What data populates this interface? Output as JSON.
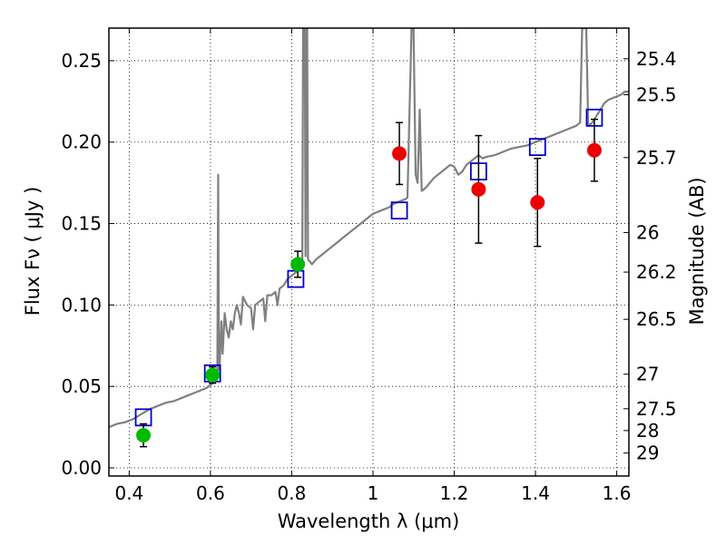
{
  "chart_data": {
    "type": "scatter",
    "xlabel": "Wavelength  λ (μm)",
    "ylabel": "Flux  Fν  ( μJy )",
    "ylabel_right": "Magnitude (AB)",
    "xlim": [
      0.35,
      1.63
    ],
    "ylim": [
      -0.005,
      0.27
    ],
    "grid": true,
    "x_ticks": [
      0.4,
      0.6,
      0.8,
      1.0,
      1.2,
      1.4,
      1.6
    ],
    "x_tick_labels": [
      "0.4",
      "0.6",
      "0.8",
      "1",
      "1.2",
      "1.4",
      "1.6"
    ],
    "y_ticks": [
      0.0,
      0.05,
      0.1,
      0.15,
      0.2,
      0.25
    ],
    "y_tick_labels": [
      "0.00",
      "0.05",
      "0.10",
      "0.15",
      "0.20",
      "0.25"
    ],
    "right_ticks": [
      {
        "label": "25.4",
        "flux": 0.2512
      },
      {
        "label": "25.5",
        "flux": 0.2291
      },
      {
        "label": "25.7",
        "flux": 0.1905
      },
      {
        "label": "26",
        "flux": 0.1445
      },
      {
        "label": "26.2",
        "flux": 0.1202
      },
      {
        "label": "26.5",
        "flux": 0.0912
      },
      {
        "label": "27",
        "flux": 0.0575
      },
      {
        "label": "27.5",
        "flux": 0.0363
      },
      {
        "label": "28",
        "flux": 0.0229
      },
      {
        "label": "29",
        "flux": 0.0091
      }
    ],
    "series": [
      {
        "kind": "line",
        "color": "#808080",
        "points": [
          [
            0.35,
            0.025
          ],
          [
            0.37,
            0.027
          ],
          [
            0.39,
            0.028
          ],
          [
            0.41,
            0.03
          ],
          [
            0.43,
            0.033
          ],
          [
            0.45,
            0.036
          ],
          [
            0.47,
            0.038
          ],
          [
            0.49,
            0.04
          ],
          [
            0.51,
            0.041
          ],
          [
            0.53,
            0.043
          ],
          [
            0.55,
            0.045
          ],
          [
            0.57,
            0.047
          ],
          [
            0.59,
            0.049
          ],
          [
            0.605,
            0.052
          ],
          [
            0.615,
            0.055
          ],
          [
            0.617,
            0.06
          ],
          [
            0.619,
            0.18
          ],
          [
            0.621,
            0.06
          ],
          [
            0.623,
            0.065
          ],
          [
            0.627,
            0.09
          ],
          [
            0.63,
            0.07
          ],
          [
            0.635,
            0.095
          ],
          [
            0.64,
            0.085
          ],
          [
            0.645,
            0.08
          ],
          [
            0.65,
            0.09
          ],
          [
            0.655,
            0.085
          ],
          [
            0.66,
            0.095
          ],
          [
            0.665,
            0.1
          ],
          [
            0.67,
            0.095
          ],
          [
            0.675,
            0.088
          ],
          [
            0.68,
            0.105
          ],
          [
            0.69,
            0.1
          ],
          [
            0.7,
            0.098
          ],
          [
            0.705,
            0.085
          ],
          [
            0.71,
            0.1
          ],
          [
            0.72,
            0.102
          ],
          [
            0.73,
            0.104
          ],
          [
            0.735,
            0.09
          ],
          [
            0.74,
            0.106
          ],
          [
            0.75,
            0.106
          ],
          [
            0.76,
            0.108
          ],
          [
            0.765,
            0.1
          ],
          [
            0.77,
            0.11
          ],
          [
            0.78,
            0.112
          ],
          [
            0.79,
            0.116
          ],
          [
            0.8,
            0.118
          ],
          [
            0.81,
            0.12
          ],
          [
            0.82,
            0.122
          ],
          [
            0.826,
            0.124
          ],
          [
            0.828,
            0.27
          ],
          [
            0.832,
            0.27
          ],
          [
            0.834,
            0.13
          ],
          [
            0.836,
            0.27
          ],
          [
            0.838,
            0.27
          ],
          [
            0.84,
            0.128
          ],
          [
            0.85,
            0.125
          ],
          [
            0.86,
            0.128
          ],
          [
            0.87,
            0.13
          ],
          [
            0.88,
            0.132
          ],
          [
            0.89,
            0.134
          ],
          [
            0.9,
            0.136
          ],
          [
            0.91,
            0.138
          ],
          [
            0.92,
            0.14
          ],
          [
            0.93,
            0.142
          ],
          [
            0.94,
            0.144
          ],
          [
            0.95,
            0.146
          ],
          [
            0.96,
            0.148
          ],
          [
            0.97,
            0.15
          ],
          [
            0.98,
            0.152
          ],
          [
            0.99,
            0.154
          ],
          [
            1.0,
            0.156
          ],
          [
            1.01,
            0.157
          ],
          [
            1.02,
            0.158
          ],
          [
            1.03,
            0.159
          ],
          [
            1.04,
            0.16
          ],
          [
            1.05,
            0.162
          ],
          [
            1.06,
            0.163
          ],
          [
            1.07,
            0.164
          ],
          [
            1.08,
            0.165
          ],
          [
            1.085,
            0.166
          ],
          [
            1.09,
            0.22
          ],
          [
            1.095,
            0.27
          ],
          [
            1.1,
            0.27
          ],
          [
            1.105,
            0.18
          ],
          [
            1.11,
            0.175
          ],
          [
            1.115,
            0.22
          ],
          [
            1.12,
            0.17
          ],
          [
            1.13,
            0.172
          ],
          [
            1.14,
            0.175
          ],
          [
            1.15,
            0.178
          ],
          [
            1.16,
            0.18
          ],
          [
            1.17,
            0.182
          ],
          [
            1.18,
            0.184
          ],
          [
            1.19,
            0.186
          ],
          [
            1.2,
            0.185
          ],
          [
            1.21,
            0.18
          ],
          [
            1.22,
            0.182
          ],
          [
            1.23,
            0.186
          ],
          [
            1.24,
            0.188
          ],
          [
            1.25,
            0.19
          ],
          [
            1.26,
            0.192
          ],
          [
            1.27,
            0.19
          ],
          [
            1.28,
            0.191
          ],
          [
            1.3,
            0.192
          ],
          [
            1.32,
            0.194
          ],
          [
            1.34,
            0.196
          ],
          [
            1.36,
            0.197
          ],
          [
            1.38,
            0.198
          ],
          [
            1.4,
            0.2
          ],
          [
            1.42,
            0.202
          ],
          [
            1.44,
            0.204
          ],
          [
            1.46,
            0.206
          ],
          [
            1.48,
            0.208
          ],
          [
            1.5,
            0.21
          ],
          [
            1.51,
            0.212
          ],
          [
            1.515,
            0.27
          ],
          [
            1.525,
            0.27
          ],
          [
            1.53,
            0.21
          ],
          [
            1.54,
            0.212
          ],
          [
            1.55,
            0.216
          ],
          [
            1.56,
            0.22
          ],
          [
            1.57,
            0.224
          ],
          [
            1.58,
            0.226
          ],
          [
            1.59,
            0.227
          ],
          [
            1.6,
            0.228
          ],
          [
            1.61,
            0.229
          ],
          [
            1.62,
            0.231
          ],
          [
            1.63,
            0.231
          ]
        ]
      },
      {
        "kind": "square",
        "color": "#0000cc",
        "points": [
          [
            0.435,
            0.031
          ],
          [
            0.605,
            0.058
          ],
          [
            0.81,
            0.116
          ],
          [
            1.065,
            0.158
          ],
          [
            1.26,
            0.182
          ],
          [
            1.405,
            0.197
          ],
          [
            1.545,
            0.215
          ]
        ]
      },
      {
        "kind": "circle",
        "color": "#00bb00",
        "points": [
          {
            "x": 0.435,
            "y": 0.02,
            "err": 0.007
          },
          {
            "x": 0.605,
            "y": 0.057,
            "err": 0.005
          },
          {
            "x": 0.815,
            "y": 0.125,
            "err": 0.008
          }
        ]
      },
      {
        "kind": "circle",
        "color": "#ee0000",
        "points": [
          {
            "x": 1.065,
            "y": 0.193,
            "err": 0.019
          },
          {
            "x": 1.26,
            "y": 0.171,
            "err": 0.033
          },
          {
            "x": 1.405,
            "y": 0.163,
            "err": 0.027
          },
          {
            "x": 1.545,
            "y": 0.195,
            "err": 0.019
          }
        ]
      }
    ]
  }
}
